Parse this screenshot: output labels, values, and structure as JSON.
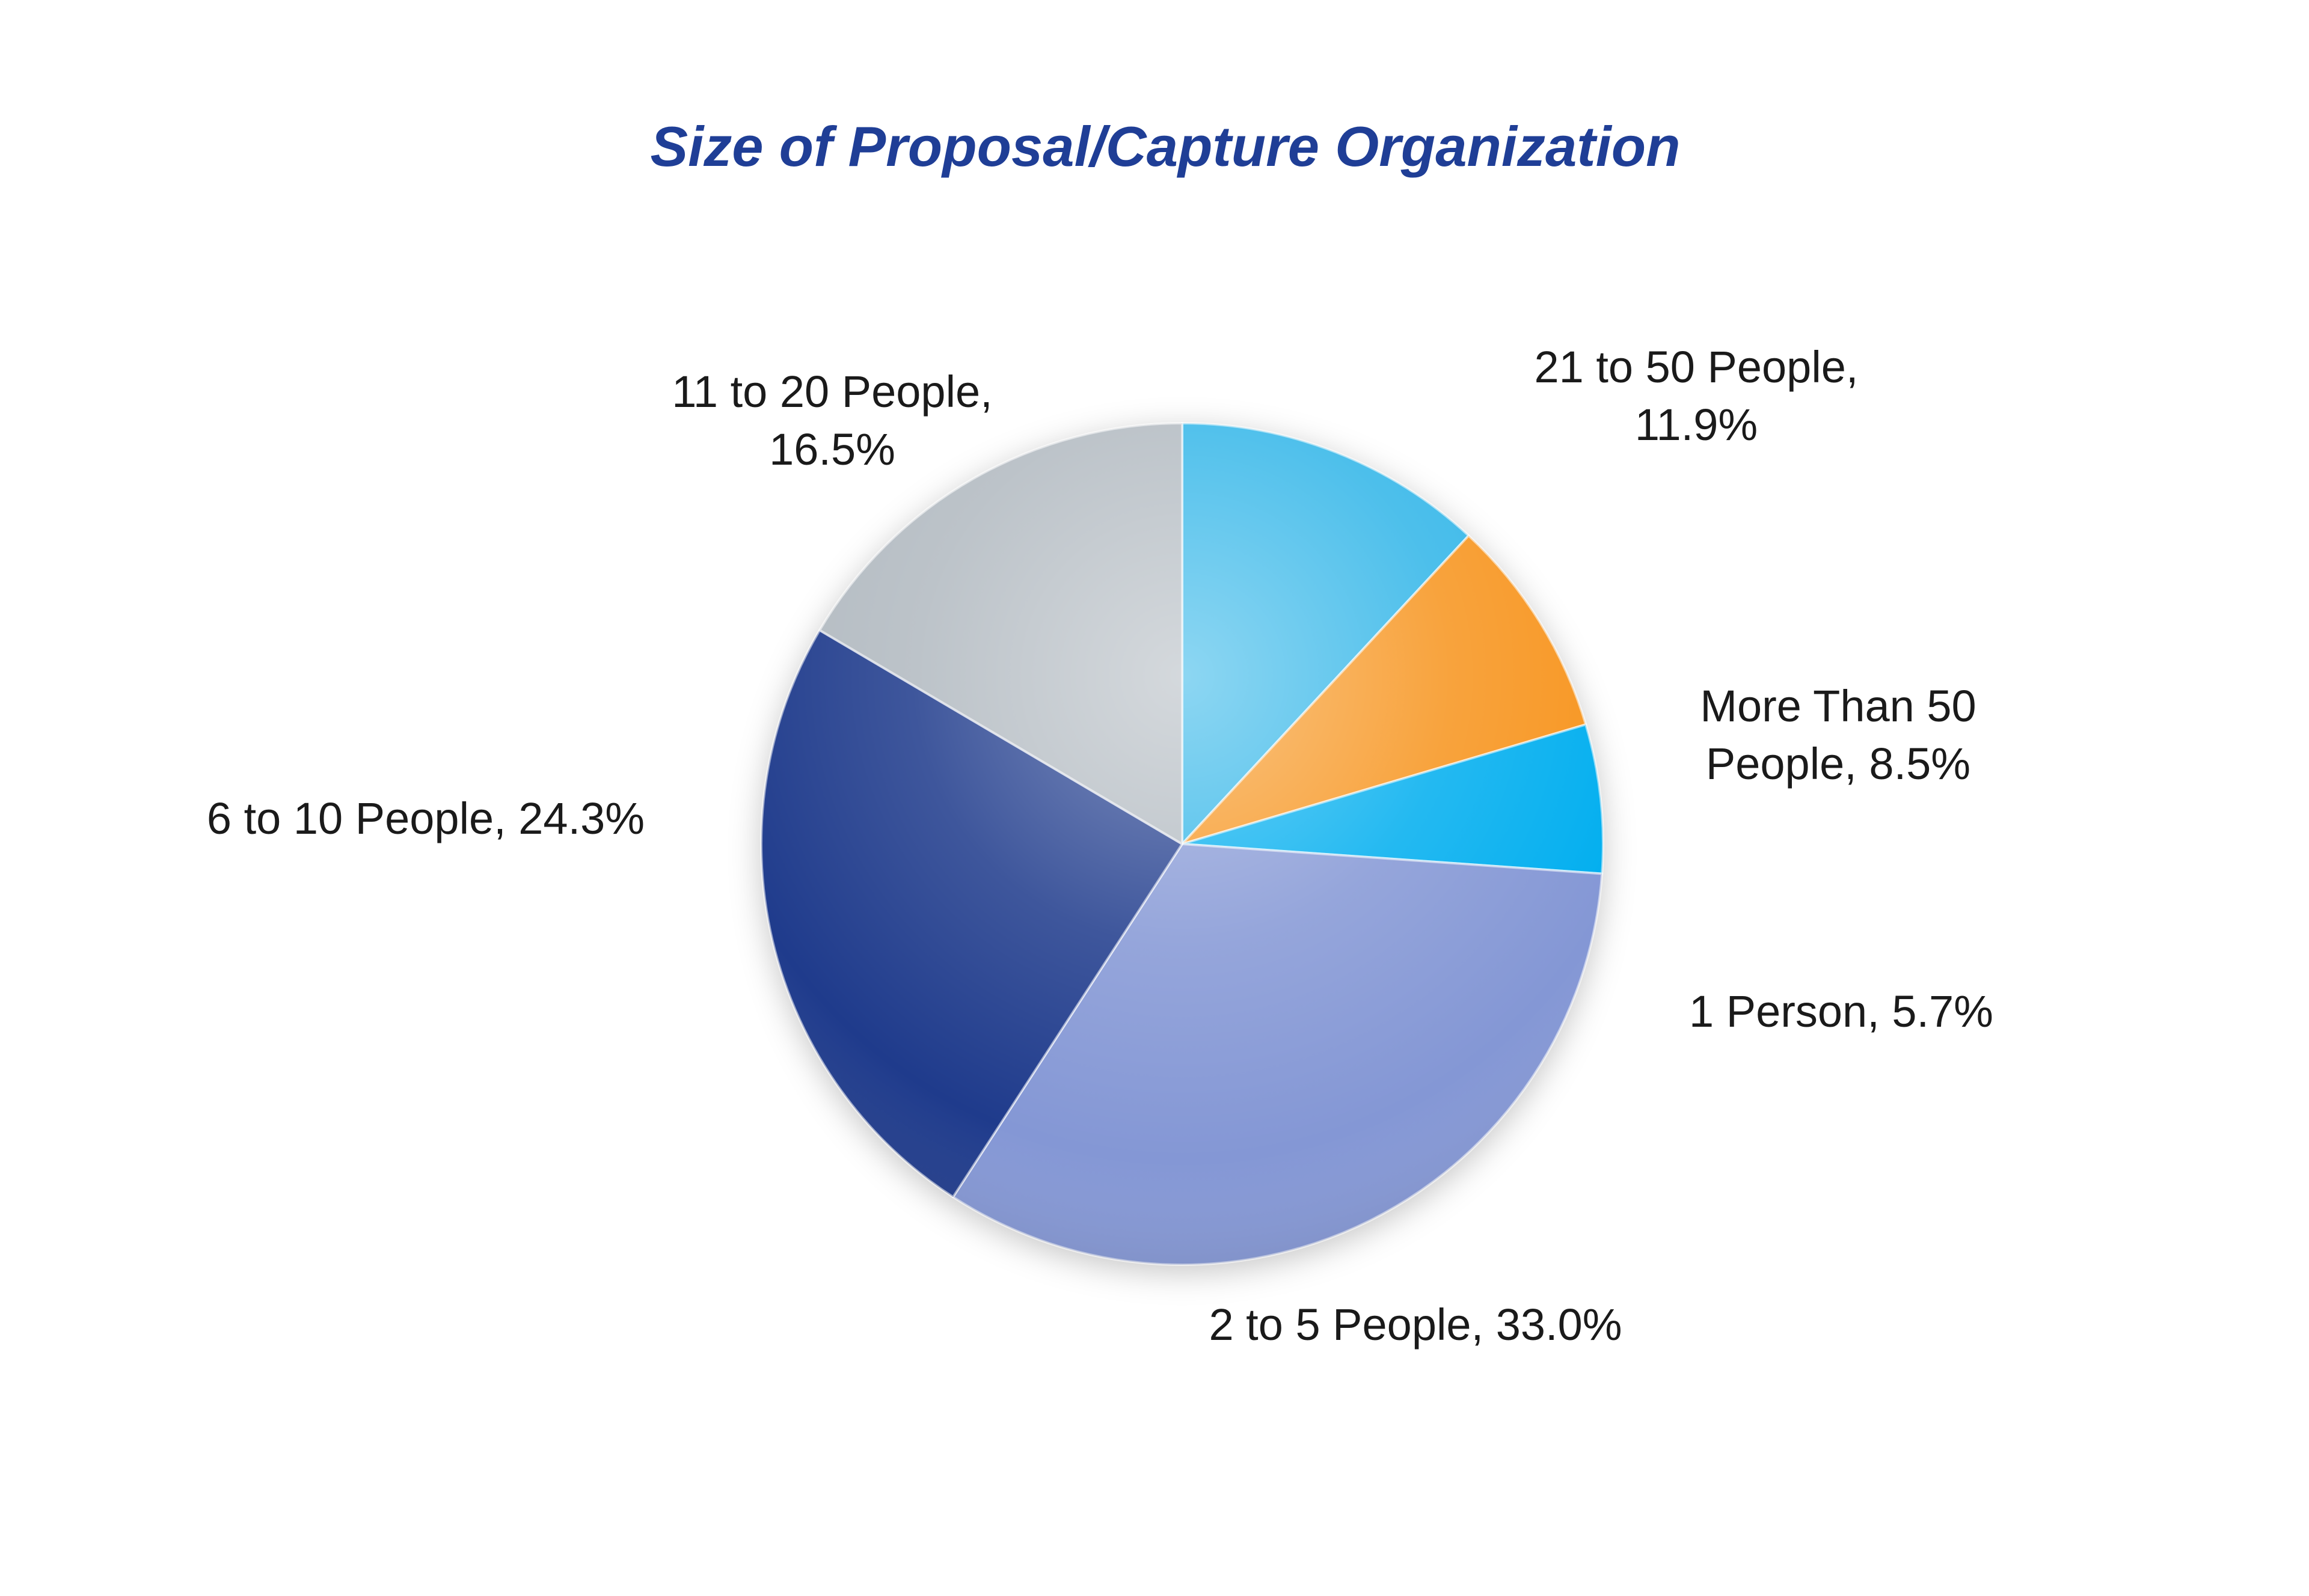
{
  "page": {
    "background_color": "#ffffff"
  },
  "chart_data": {
    "type": "pie",
    "title": "Size of Proposal/Capture Organization",
    "title_color": "#1F3E96",
    "start_angle_deg": -90,
    "direction": "clockwise",
    "legend": "none",
    "slices": [
      {
        "category": "21 to 50 People",
        "value": 11.9,
        "color": "#30B5E8",
        "label": "21 to 50 People, 11.9%",
        "label_lines": [
          "21 to 50 People,",
          "11.9%"
        ]
      },
      {
        "category": "More Than 50 People",
        "value": 8.5,
        "color": "#F7941D",
        "label": "More Than 50 People, 8.5%",
        "label_lines": [
          "More Than 50",
          "People, 8.5%"
        ]
      },
      {
        "category": "1 Person",
        "value": 5.7,
        "color": "#00AEEF",
        "label": "1 Person, 5.7%",
        "label_lines": [
          "1 Person, 5.7%"
        ]
      },
      {
        "category": "2 to 5 People",
        "value": 33.0,
        "color": "#8497D5",
        "label": "2 to 5 People, 33.0%",
        "label_lines": [
          "2 to 5 People, 33.0%"
        ]
      },
      {
        "category": "6 to 10 People",
        "value": 24.3,
        "color": "#1F3B8C",
        "label": "6 to 10 People, 24.3%",
        "label_lines": [
          "6 to 10 People, 24.3%"
        ]
      },
      {
        "category": "11 to 20 People",
        "value": 16.5,
        "color": "#B1B9C0",
        "label": "11 to 20 People, 16.5%",
        "label_lines": [
          "11 to 20 People,",
          "16.5%"
        ]
      }
    ]
  }
}
